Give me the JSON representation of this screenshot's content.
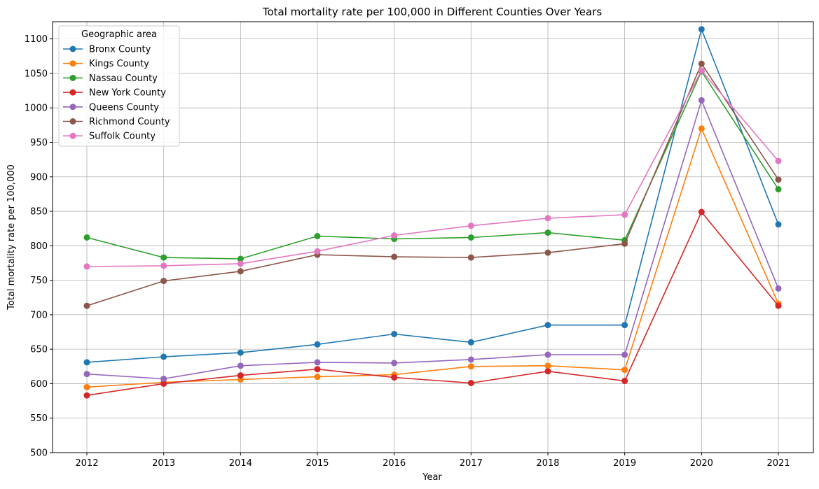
{
  "chart_data": {
    "type": "line",
    "title": "Total mortality rate per 100,000 in Different Counties Over Years",
    "xlabel": "Year",
    "ylabel": "Total mortality rate per 100,000",
    "x": [
      "2012",
      "2013",
      "2014",
      "2015",
      "2016",
      "2017",
      "2018",
      "2019",
      "2020",
      "2021"
    ],
    "ylim": [
      500,
      1125
    ],
    "yticks": [
      "500",
      "550",
      "600",
      "650",
      "700",
      "750",
      "800",
      "850",
      "900",
      "950",
      "1000",
      "1050",
      "1100"
    ],
    "grid": true,
    "legend_title": "Geographic area",
    "legend_position": "top-left",
    "series": [
      {
        "name": "Bronx County",
        "color": "#1f77b4",
        "values": [
          631,
          639,
          645,
          657,
          672,
          660,
          685,
          685,
          1114,
          831
        ]
      },
      {
        "name": "Kings County",
        "color": "#ff7f0e",
        "values": [
          595,
          602,
          606,
          610,
          613,
          625,
          626,
          620,
          970,
          716
        ]
      },
      {
        "name": "Nassau County",
        "color": "#2ca02c",
        "values": [
          812,
          783,
          781,
          814,
          810,
          812,
          819,
          808,
          1053,
          882
        ]
      },
      {
        "name": "New York County",
        "color": "#d62728",
        "values": [
          583,
          600,
          612,
          621,
          609,
          601,
          618,
          604,
          849,
          713
        ]
      },
      {
        "name": "Queens County",
        "color": "#9467bd",
        "values": [
          614,
          607,
          626,
          631,
          630,
          635,
          642,
          642,
          1011,
          738
        ]
      },
      {
        "name": "Richmond County",
        "color": "#8c564b",
        "values": [
          713,
          749,
          763,
          787,
          784,
          783,
          790,
          803,
          1064,
          896
        ]
      },
      {
        "name": "Suffolk County",
        "color": "#e377c2",
        "values": [
          770,
          771,
          774,
          792,
          815,
          829,
          840,
          845,
          1054,
          923
        ]
      }
    ]
  }
}
